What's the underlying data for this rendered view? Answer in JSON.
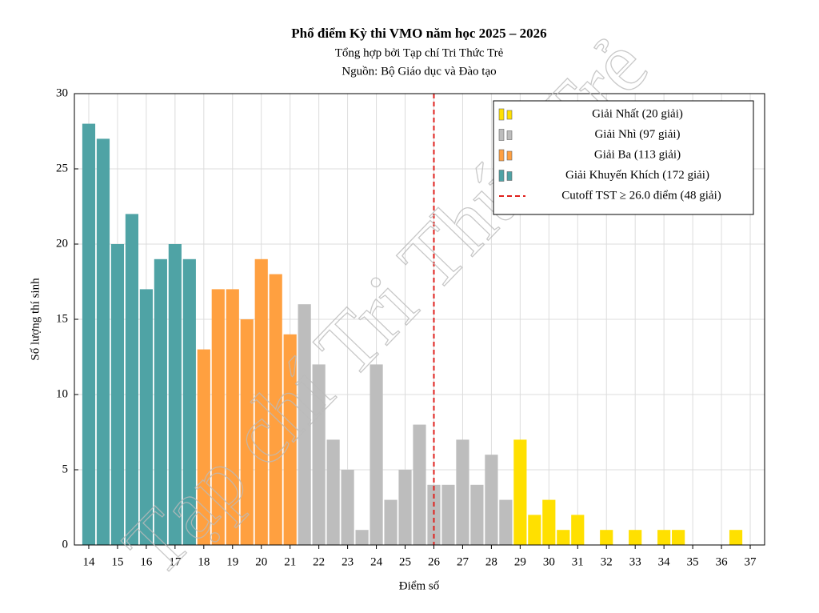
{
  "chart_data": {
    "type": "bar",
    "title": "Phổ điểm Kỳ thi VMO năm học 2025 – 2026",
    "subtitle": [
      "Tổng hợp bởi Tạp chí Tri Thức Trẻ",
      "Nguồn: Bộ Giáo dục và Đào tạo"
    ],
    "x_label": "Điểm số",
    "y_label": "Số lượng thí sinh",
    "watermark": "Tạp chí Tri Thức Trẻ",
    "xlim": [
      13.5,
      37.5
    ],
    "ylim": [
      0,
      30
    ],
    "xticks": [
      14,
      15,
      16,
      17,
      18,
      19,
      20,
      21,
      22,
      23,
      24,
      25,
      26,
      27,
      28,
      29,
      30,
      31,
      32,
      33,
      34,
      35,
      36,
      37
    ],
    "yticks": [
      0,
      5,
      10,
      15,
      20,
      25,
      30
    ],
    "grid": true,
    "legend": "upper right",
    "series": [
      {
        "name": "Giải Nhất (20 giải)",
        "color": "#ffe000",
        "x": [
          29,
          29.5,
          30,
          30.5,
          31,
          32,
          33,
          34,
          34.5,
          36.5
        ],
        "values": [
          7,
          2,
          3,
          1,
          2,
          1,
          1,
          1,
          1,
          1
        ]
      },
      {
        "name": "Giải Nhì (97 giải)",
        "color": "#bdbdbd",
        "x": [
          21.5,
          22,
          22.5,
          23,
          23.5,
          24,
          24.5,
          25,
          25.5,
          26,
          26.5,
          27,
          27.5,
          28,
          28.5
        ],
        "values": [
          16,
          12,
          7,
          5,
          1,
          12,
          3,
          5,
          8,
          4,
          4,
          7,
          4,
          6,
          3
        ]
      },
      {
        "name": "Giải Ba (113 giải)",
        "color": "#ffa040",
        "x": [
          18,
          18.5,
          19,
          19.5,
          20,
          20.5,
          21
        ],
        "values": [
          13,
          17,
          17,
          15,
          19,
          18,
          14
        ]
      },
      {
        "name": "Giải Khuyến Khích (172 giải)",
        "color": "#4fa3a5",
        "x": [
          14,
          14.5,
          15,
          15.5,
          16,
          16.5,
          17,
          17.5
        ],
        "values": [
          28,
          27,
          20,
          22,
          17,
          19,
          20,
          19
        ]
      }
    ],
    "cutoff": {
      "x": 26,
      "label": "Cutoff TST ≥ 26.0 điểm (48 giải)",
      "color": "#e0211d"
    }
  }
}
